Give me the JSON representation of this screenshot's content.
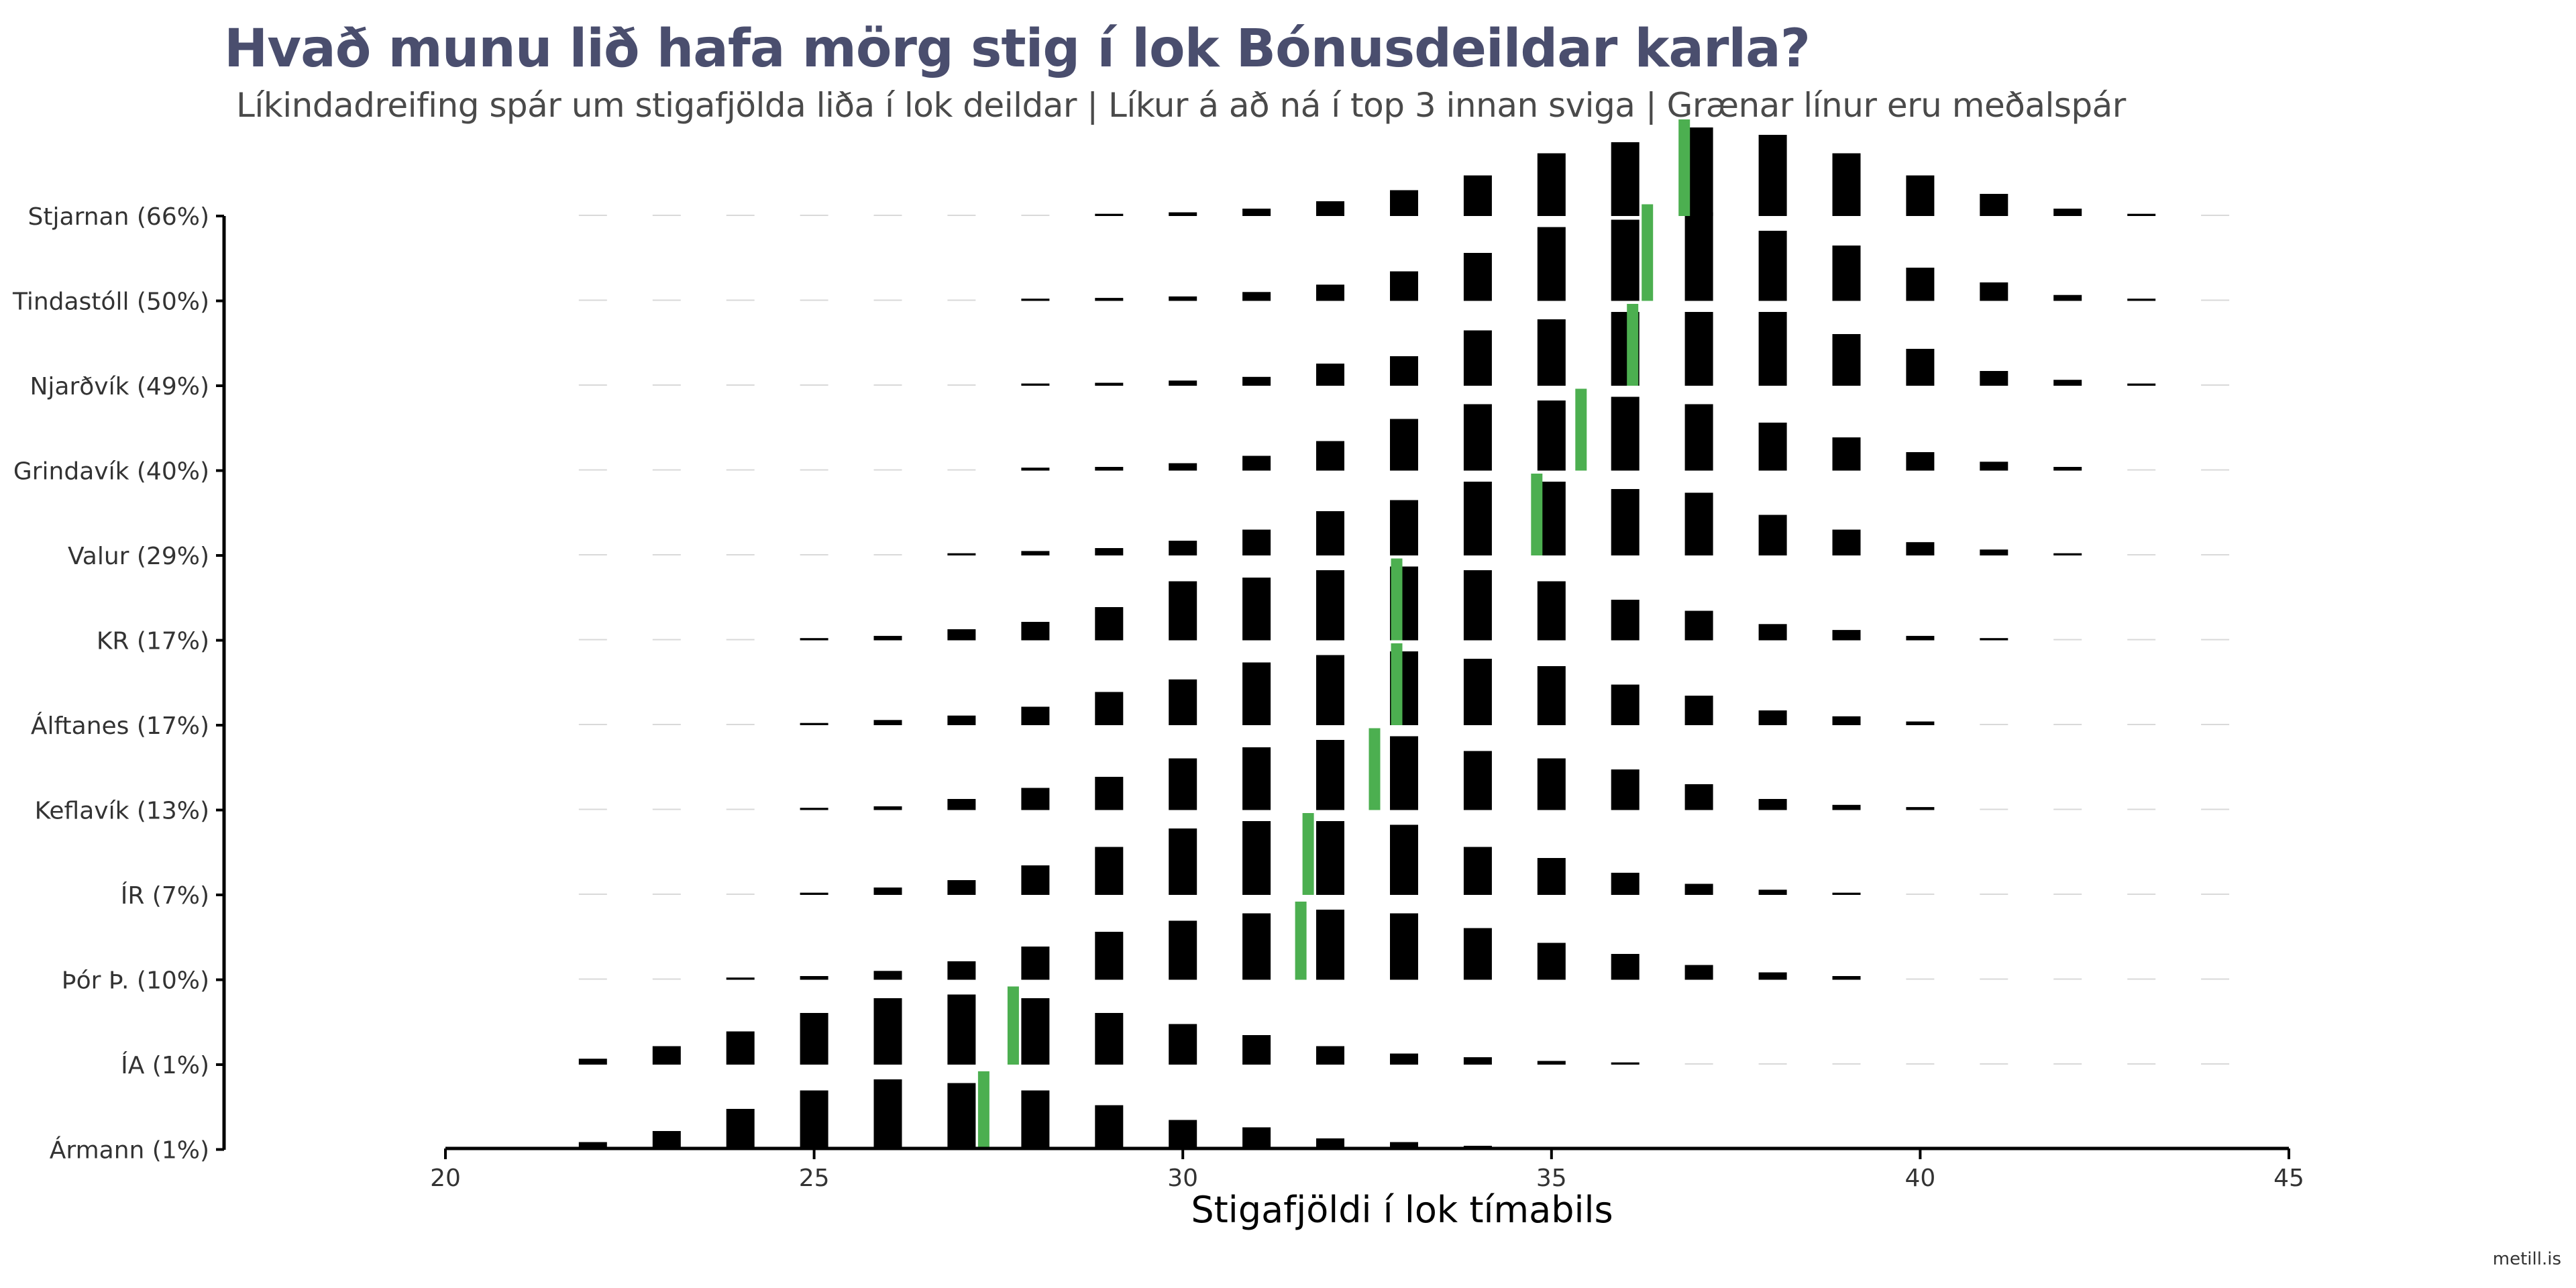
{
  "chart_data": {
    "type": "bar",
    "title": "Hvað munu lið hafa mörg stig í lok Bónusdeildar karla?",
    "subtitle": "Líkindadreifing spár um stigafjölda liða í lok deildar | Líkur á að ná í top 3 innan sviga | Grænar línur eru meðalspár",
    "xlabel": "Stigafjöldi í lok tímabils",
    "ylabel": "",
    "xlim": [
      20,
      45
    ],
    "x_ticks": [
      20,
      25,
      30,
      35,
      40,
      45
    ],
    "grid": false,
    "legend": "none",
    "colors": {
      "bars": "#000000",
      "mean_line": "#4caf50",
      "faint_bars": "#d9d9d9"
    },
    "x": [
      22,
      23,
      24,
      25,
      26,
      27,
      28,
      29,
      30,
      31,
      32,
      33,
      34,
      35,
      36,
      37,
      38,
      39,
      40,
      41,
      42,
      43,
      44
    ],
    "series": [
      {
        "name": "Stjarnan (66%)",
        "mean": 36.8,
        "values": [
          0,
          0,
          0,
          0,
          0,
          0,
          0.002,
          0.003,
          0.005,
          0.01,
          0.02,
          0.035,
          0.055,
          0.085,
          0.1,
          0.12,
          0.11,
          0.085,
          0.055,
          0.03,
          0.01,
          0.003,
          0.002
        ]
      },
      {
        "name": "Tindastóll (50%)",
        "mean": 36.3,
        "values": [
          0,
          0,
          0,
          0,
          0,
          0.001,
          0.003,
          0.004,
          0.006,
          0.012,
          0.022,
          0.04,
          0.065,
          0.1,
          0.11,
          0.12,
          0.095,
          0.075,
          0.045,
          0.025,
          0.008,
          0.003,
          0
        ]
      },
      {
        "name": "Njarðvík (49%)",
        "mean": 36.1,
        "values": [
          0,
          0,
          0,
          0.001,
          0,
          0.002,
          0.003,
          0.004,
          0.007,
          0.012,
          0.03,
          0.04,
          0.075,
          0.09,
          0.1,
          0.1,
          0.1,
          0.07,
          0.05,
          0.02,
          0.008,
          0.003,
          0.001
        ]
      },
      {
        "name": "Grindavík (40%)",
        "mean": 35.4,
        "values": [
          0,
          0,
          0,
          0.001,
          0.001,
          0.002,
          0.004,
          0.005,
          0.01,
          0.02,
          0.04,
          0.07,
          0.09,
          0.095,
          0.1,
          0.09,
          0.065,
          0.045,
          0.025,
          0.012,
          0.005,
          0.001,
          0
        ]
      },
      {
        "name": "Valur (29%)",
        "mean": 34.8,
        "values": [
          0,
          0,
          0.001,
          0.001,
          0.001,
          0.003,
          0.006,
          0.01,
          0.02,
          0.035,
          0.06,
          0.075,
          0.1,
          0.1,
          0.09,
          0.085,
          0.055,
          0.035,
          0.018,
          0.008,
          0.003,
          0.001,
          0
        ]
      },
      {
        "name": "KR (17%)",
        "mean": 32.9,
        "values": [
          0,
          0,
          0.002,
          0.003,
          0.006,
          0.015,
          0.025,
          0.045,
          0.08,
          0.085,
          0.095,
          0.1,
          0.095,
          0.08,
          0.055,
          0.04,
          0.022,
          0.014,
          0.006,
          0.003,
          0.002,
          0.001,
          0
        ]
      },
      {
        "name": "Álftanes (17%)",
        "mean": 32.9,
        "values": [
          0,
          0.001,
          0.002,
          0.003,
          0.007,
          0.013,
          0.025,
          0.045,
          0.062,
          0.085,
          0.095,
          0.1,
          0.09,
          0.08,
          0.055,
          0.04,
          0.02,
          0.012,
          0.005,
          0.002,
          0.001,
          0,
          0
        ]
      },
      {
        "name": "Keflavík (13%)",
        "mean": 32.6,
        "values": [
          0,
          0,
          0.002,
          0.003,
          0.005,
          0.015,
          0.03,
          0.045,
          0.07,
          0.085,
          0.095,
          0.1,
          0.08,
          0.07,
          0.055,
          0.035,
          0.015,
          0.007,
          0.004,
          0.002,
          0.001,
          0,
          0
        ]
      },
      {
        "name": "ÍR (7%)",
        "mean": 31.7,
        "values": [
          0,
          0,
          0.001,
          0.003,
          0.01,
          0.02,
          0.04,
          0.065,
          0.09,
          0.1,
          0.1,
          0.095,
          0.065,
          0.05,
          0.03,
          0.015,
          0.007,
          0.003,
          0.001,
          0,
          0.001,
          0,
          0
        ]
      },
      {
        "name": "Þór Þ. (10%)",
        "mean": 31.6,
        "values": [
          0.001,
          0.002,
          0.003,
          0.005,
          0.012,
          0.025,
          0.045,
          0.065,
          0.08,
          0.09,
          0.095,
          0.09,
          0.07,
          0.05,
          0.035,
          0.02,
          0.01,
          0.005,
          0.002,
          0.001,
          0.001,
          0,
          0
        ]
      },
      {
        "name": "ÍA (1%)",
        "mean": 27.7,
        "values": [
          0.008,
          0.025,
          0.045,
          0.07,
          0.09,
          0.095,
          0.09,
          0.07,
          0.055,
          0.04,
          0.025,
          0.015,
          0.01,
          0.005,
          0.003,
          0.002,
          0.001,
          0,
          0,
          0.001,
          0,
          0,
          0
        ]
      },
      {
        "name": "Ármann (1%)",
        "mean": 27.3,
        "values": [
          0.01,
          0.025,
          0.055,
          0.08,
          0.095,
          0.09,
          0.08,
          0.06,
          0.04,
          0.03,
          0.015,
          0.01,
          0.005,
          0.002,
          0.001,
          0,
          0,
          0,
          0,
          0,
          0,
          0,
          0
        ]
      }
    ]
  },
  "source": "metill.is"
}
